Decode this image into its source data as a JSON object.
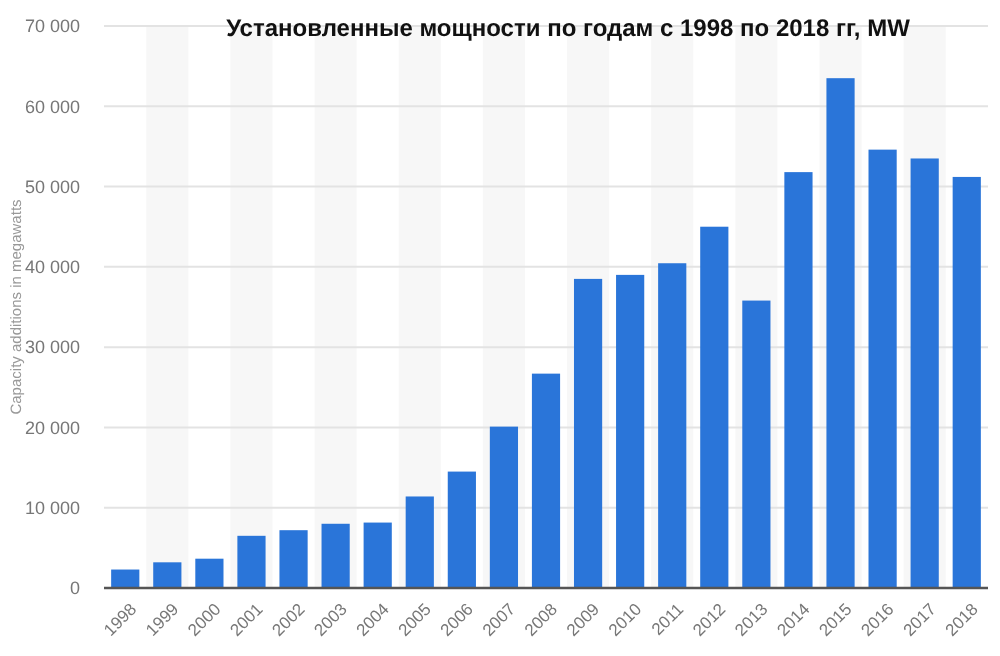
{
  "chart_data": {
    "type": "bar",
    "title": "Установленные мощности по годам с 1998 по 2018 гг, MW",
    "ylabel": "Capacity additions in megawatts",
    "categories": [
      "1998",
      "1999",
      "2000",
      "2001",
      "2002",
      "2003",
      "2004",
      "2005",
      "2006",
      "2007",
      "2008",
      "2009",
      "2010",
      "2011",
      "2012",
      "2013",
      "2014",
      "2015",
      "2016",
      "2017",
      "2018"
    ],
    "values": [
      2300,
      3200,
      3650,
      6500,
      7200,
      8000,
      8150,
      11400,
      14500,
      20100,
      26700,
      38500,
      39000,
      40450,
      45000,
      35800,
      51800,
      63500,
      54600,
      53500,
      51200
    ],
    "color": "#2a75d9",
    "ylim": [
      0,
      70000
    ],
    "yticks": [
      {
        "value": 0,
        "label": "0"
      },
      {
        "value": 10000,
        "label": "10 000"
      },
      {
        "value": 20000,
        "label": "20 000"
      },
      {
        "value": 30000,
        "label": "30 000"
      },
      {
        "value": 40000,
        "label": "40 000"
      },
      {
        "value": 50000,
        "label": "50 000"
      },
      {
        "value": 60000,
        "label": "60 000"
      },
      {
        "value": 70000,
        "label": "70 000"
      }
    ],
    "grid": "y"
  }
}
